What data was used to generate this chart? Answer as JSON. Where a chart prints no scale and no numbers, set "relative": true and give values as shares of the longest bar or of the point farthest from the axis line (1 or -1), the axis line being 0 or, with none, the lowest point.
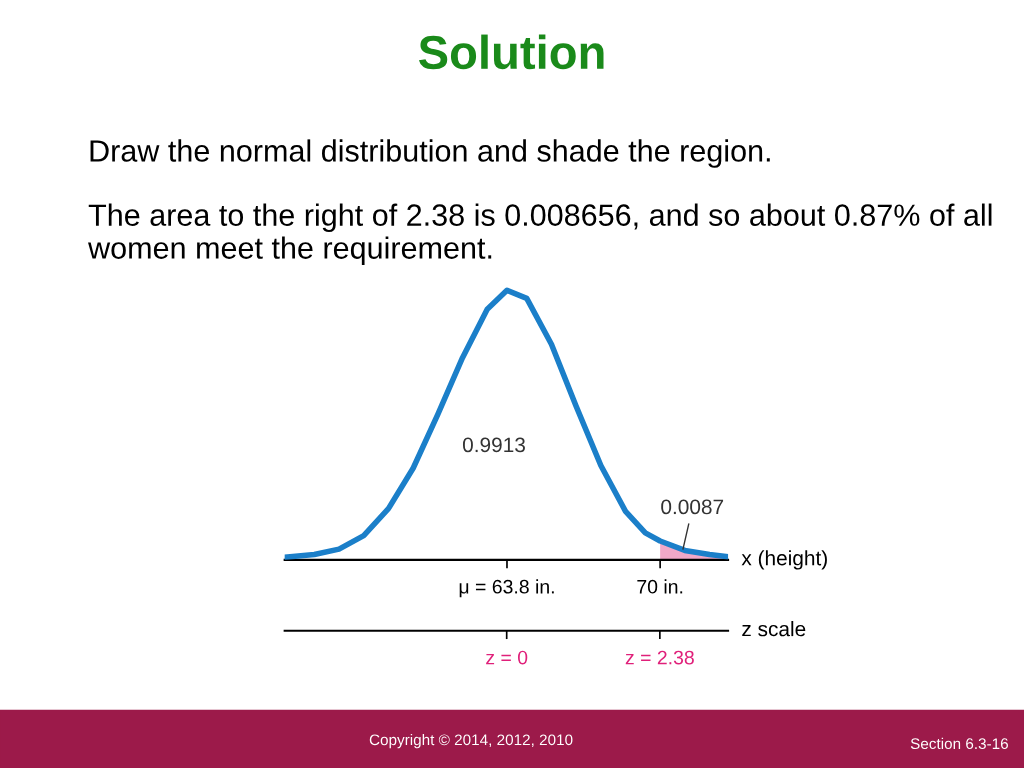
{
  "chart_data": {
    "type": "line",
    "title": "Solution",
    "relative": true,
    "xlabel": "x (height)",
    "x2label": "z scale",
    "xlim": [
      54.8,
      72.75
    ],
    "xticks": [
      {
        "value": 63.8,
        "label": "μ = 63.8 in."
      },
      {
        "value": 70,
        "label": "70 in."
      }
    ],
    "x2lim": [
      -3.45,
      3.44
    ],
    "x2ticks": [
      {
        "value": 0,
        "label": "z = 0"
      },
      {
        "value": 2.38,
        "label": "z = 2.38"
      }
    ],
    "series": [
      {
        "type": "line",
        "color": "#1b7fc9",
        "x": [
          54.8,
          56.0,
          57.0,
          58.0,
          59.0,
          60.0,
          61.0,
          62.0,
          63.0,
          63.8,
          64.6,
          65.6,
          66.6,
          67.6,
          68.6,
          69.4,
          70.0,
          71.0,
          72.0,
          72.75
        ],
        "values": [
          0.01,
          0.02,
          0.04,
          0.09,
          0.19,
          0.34,
          0.54,
          0.75,
          0.93,
          1.0,
          0.97,
          0.8,
          0.57,
          0.35,
          0.18,
          0.1,
          0.07,
          0.035,
          0.02,
          0.012
        ]
      },
      {
        "type": "area",
        "color": "#f0a8c8",
        "x": [
          70.0,
          71.0,
          72.0,
          72.75
        ],
        "values": [
          0.07,
          0.035,
          0.02,
          0.012
        ]
      }
    ],
    "annotations": [
      "Draw the normal distribution and shade the region.",
      "The area to the right of 2.38 is 0.008656, and so about 0.87% of all women meet the requirement.",
      "0.9913",
      {
        "text": "0.0087",
        "x": 70.9,
        "y": 0.03
      },
      "Copyright © 2014, 2012, 2010",
      "Section 6.3-16"
    ]
  }
}
